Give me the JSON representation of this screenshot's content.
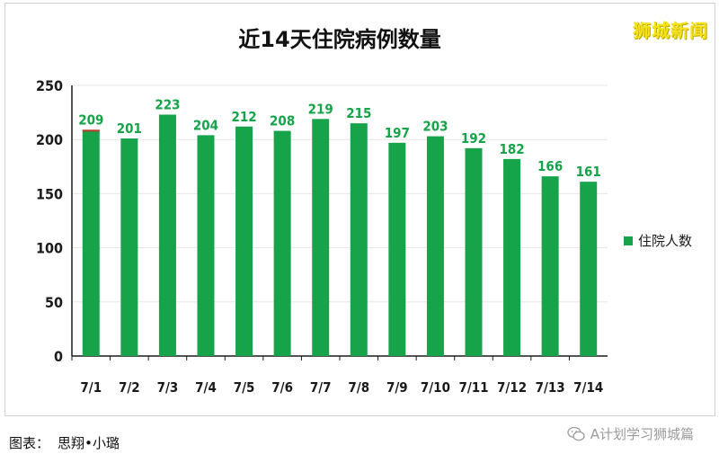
{
  "watermark": "狮城新闻",
  "caption": "图表： 思翔•小璐",
  "source": "A计划学习狮城篇",
  "colors": {
    "bar": "#17a34a",
    "label": "#17a34a",
    "accent_top": "#c0392b",
    "grid": "#e6e6e6",
    "axis": "#1a1a1a"
  },
  "chart_data": {
    "type": "bar",
    "title": "近14天住院病例数量",
    "categories": [
      "7/1",
      "7/2",
      "7/3",
      "7/4",
      "7/5",
      "7/6",
      "7/7",
      "7/8",
      "7/9",
      "7/10",
      "7/11",
      "7/12",
      "7/13",
      "7/14"
    ],
    "series": [
      {
        "name": "住院人数",
        "values": [
          209,
          201,
          223,
          204,
          212,
          208,
          219,
          215,
          197,
          203,
          192,
          182,
          166,
          161
        ]
      }
    ],
    "ylim": [
      0,
      250
    ],
    "yticks": [
      0,
      50,
      100,
      150,
      200,
      250
    ],
    "grid": true,
    "legend": "right"
  }
}
